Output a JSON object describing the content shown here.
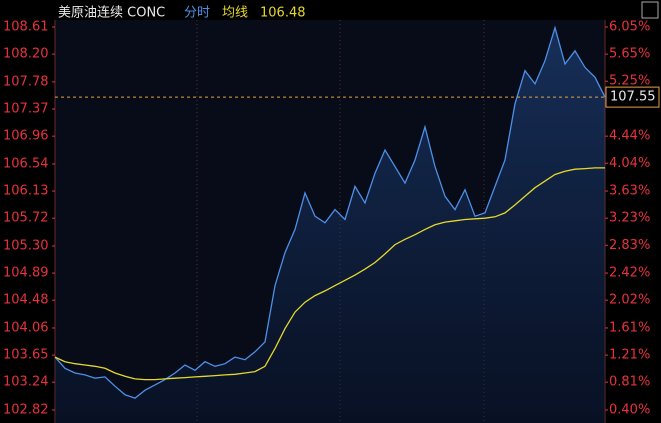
{
  "chart_data": {
    "type": "line",
    "title": "美原油连续 CONC",
    "avg_value": 106.48,
    "reference_line": 107.55,
    "series": [
      {
        "name": "分时",
        "color": "#4d8fe8",
        "area": true,
        "values": [
          103.62,
          103.45,
          103.38,
          103.35,
          103.3,
          103.32,
          103.18,
          103.05,
          103.0,
          103.12,
          103.2,
          103.28,
          103.38,
          103.5,
          103.42,
          103.55,
          103.48,
          103.52,
          103.62,
          103.58,
          103.7,
          103.85,
          104.7,
          105.2,
          105.55,
          106.1,
          105.75,
          105.65,
          105.85,
          105.7,
          106.2,
          105.95,
          106.4,
          106.75,
          106.5,
          106.25,
          106.6,
          107.1,
          106.5,
          106.05,
          105.85,
          106.15,
          105.75,
          105.8,
          106.2,
          106.6,
          107.45,
          107.95,
          107.75,
          108.1,
          108.6,
          108.05,
          108.25,
          108.0,
          107.85,
          107.55
        ]
      },
      {
        "name": "均线",
        "color": "#e6d82c",
        "area": false,
        "values": [
          103.62,
          103.55,
          103.52,
          103.5,
          103.48,
          103.45,
          103.38,
          103.33,
          103.29,
          103.28,
          103.28,
          103.29,
          103.3,
          103.31,
          103.32,
          103.33,
          103.34,
          103.35,
          103.36,
          103.38,
          103.4,
          103.48,
          103.75,
          104.05,
          104.3,
          104.45,
          104.55,
          104.62,
          104.7,
          104.78,
          104.86,
          104.95,
          105.05,
          105.18,
          105.32,
          105.4,
          105.47,
          105.55,
          105.62,
          105.66,
          105.68,
          105.7,
          105.71,
          105.72,
          105.74,
          105.8,
          105.92,
          106.05,
          106.18,
          106.28,
          106.38,
          106.43,
          106.46,
          106.47,
          106.48,
          106.48
        ]
      }
    ],
    "ylim": [
      102.82,
      108.61
    ],
    "yticks": [
      108.61,
      {
        "value": 108.2,
        "label": "108.20"
      },
      107.78,
      107.37,
      106.96,
      106.54,
      106.13,
      105.72,
      {
        "value": 105.3,
        "label": "105.30"
      },
      104.89,
      104.48,
      104.06,
      103.65,
      103.24,
      102.82
    ],
    "y2lim": [
      0.4,
      6.05
    ],
    "y2ticks": [
      {
        "value": 6.05,
        "label": "6.05%"
      },
      {
        "value": 5.65,
        "label": "5.65%"
      },
      {
        "value": 5.25,
        "label": "5.25%"
      },
      {
        "value": 4.44,
        "label": "4.44%"
      },
      {
        "value": 4.04,
        "label": "4.04%"
      },
      {
        "value": 3.63,
        "label": "3.63%"
      },
      {
        "value": 3.23,
        "label": "3.23%"
      },
      {
        "value": 2.83,
        "label": "2.83%"
      },
      {
        "value": 2.42,
        "label": "2.42%"
      },
      {
        "value": 2.02,
        "label": "2.02%"
      },
      {
        "value": 1.61,
        "label": "1.61%"
      },
      {
        "value": 1.21,
        "label": "1.21%"
      },
      {
        "value": 0.81,
        "label": "0.81%"
      },
      {
        "value": 0.4,
        "label": "0.40%"
      }
    ],
    "grid": false,
    "axis_color": "#e8323c"
  }
}
